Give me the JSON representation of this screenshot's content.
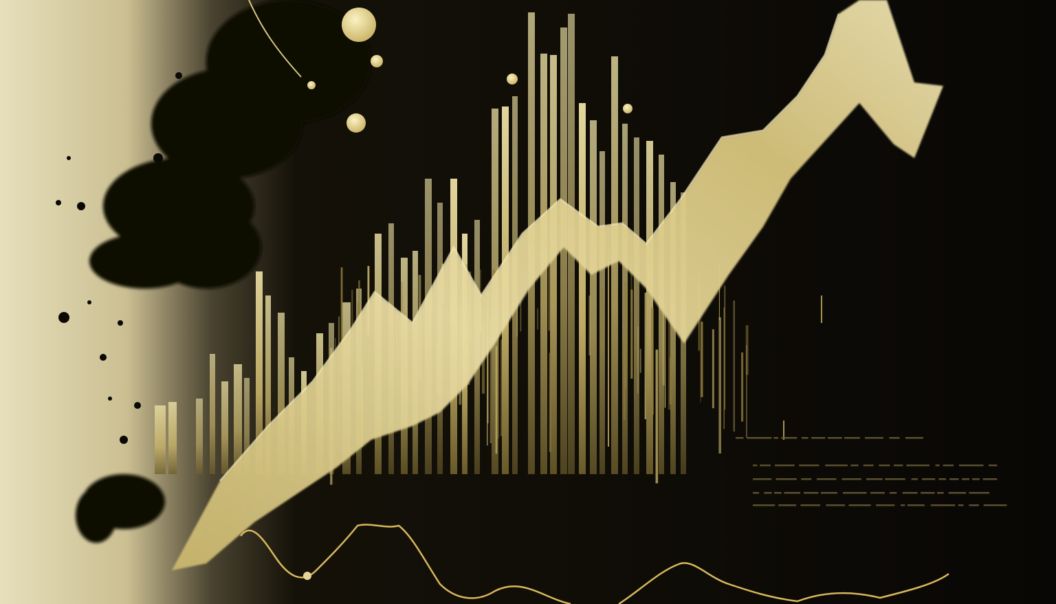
{
  "artwork": {
    "description_kind": "abstract gold and black financial chart illustration",
    "colors": {
      "background_dark": "#0b0906",
      "background_light": "#e4dcb4",
      "gold": "#d9c983",
      "gold_bright": "#efe2a4",
      "gold_deep": "#b59a48",
      "ink": "#080705"
    },
    "icons": [
      "gold-dot-icon"
    ]
  }
}
